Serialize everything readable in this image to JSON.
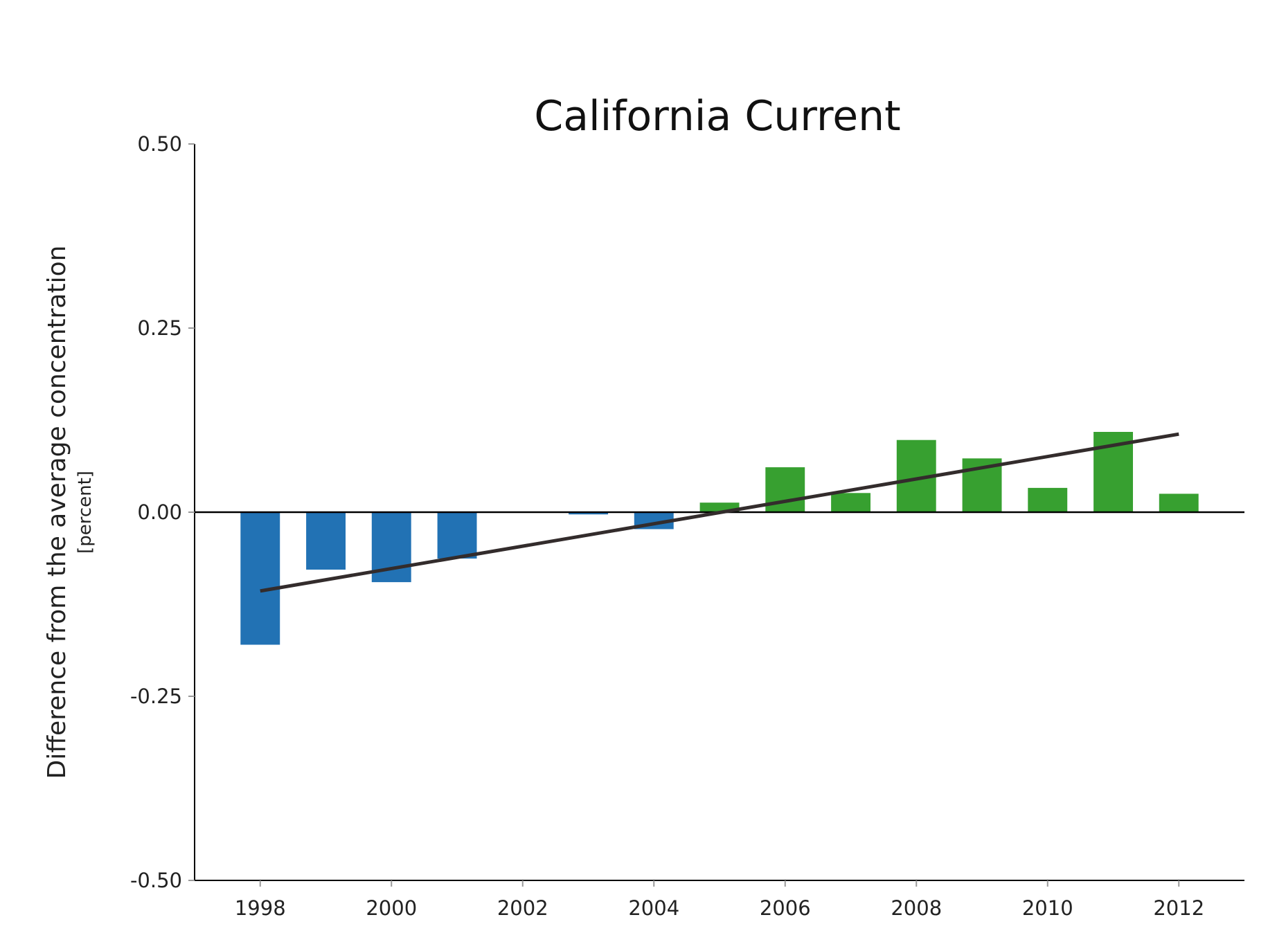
{
  "chart_data": {
    "type": "bar",
    "title": "California Current",
    "xlabel": "",
    "ylabel": "Difference from the average concentration",
    "ylabel_unit": "[percent]",
    "ylim": [
      -0.5,
      0.5
    ],
    "yticks": [
      "0.50",
      "0.25",
      "0.00",
      "-0.25",
      "-0.50"
    ],
    "ytick_values": [
      0.5,
      0.25,
      0.0,
      -0.25,
      -0.5
    ],
    "xlim": [
      1997,
      2013
    ],
    "xticks": [
      "1998",
      "2000",
      "2002",
      "2004",
      "2006",
      "2008",
      "2010",
      "2012"
    ],
    "xtick_values": [
      1998,
      2000,
      2002,
      2004,
      2006,
      2008,
      2010,
      2012
    ],
    "grid": false,
    "legend": "none",
    "x": [
      1998,
      1999,
      2000,
      2001,
      2002,
      2003,
      2004,
      2005,
      2006,
      2007,
      2008,
      2009,
      2010,
      2011,
      2012
    ],
    "values": [
      -0.18,
      -0.078,
      -0.095,
      -0.063,
      0.0,
      -0.003,
      -0.023,
      0.013,
      0.061,
      0.026,
      0.098,
      0.073,
      0.033,
      0.109,
      0.025
    ],
    "trend_line": {
      "x": [
        1998,
        2012
      ],
      "y": [
        -0.107,
        0.106
      ]
    },
    "colors": {
      "negative": "#2272b4",
      "positive": "#37a030",
      "trend": "#332c2c",
      "axis": "#000000"
    }
  }
}
